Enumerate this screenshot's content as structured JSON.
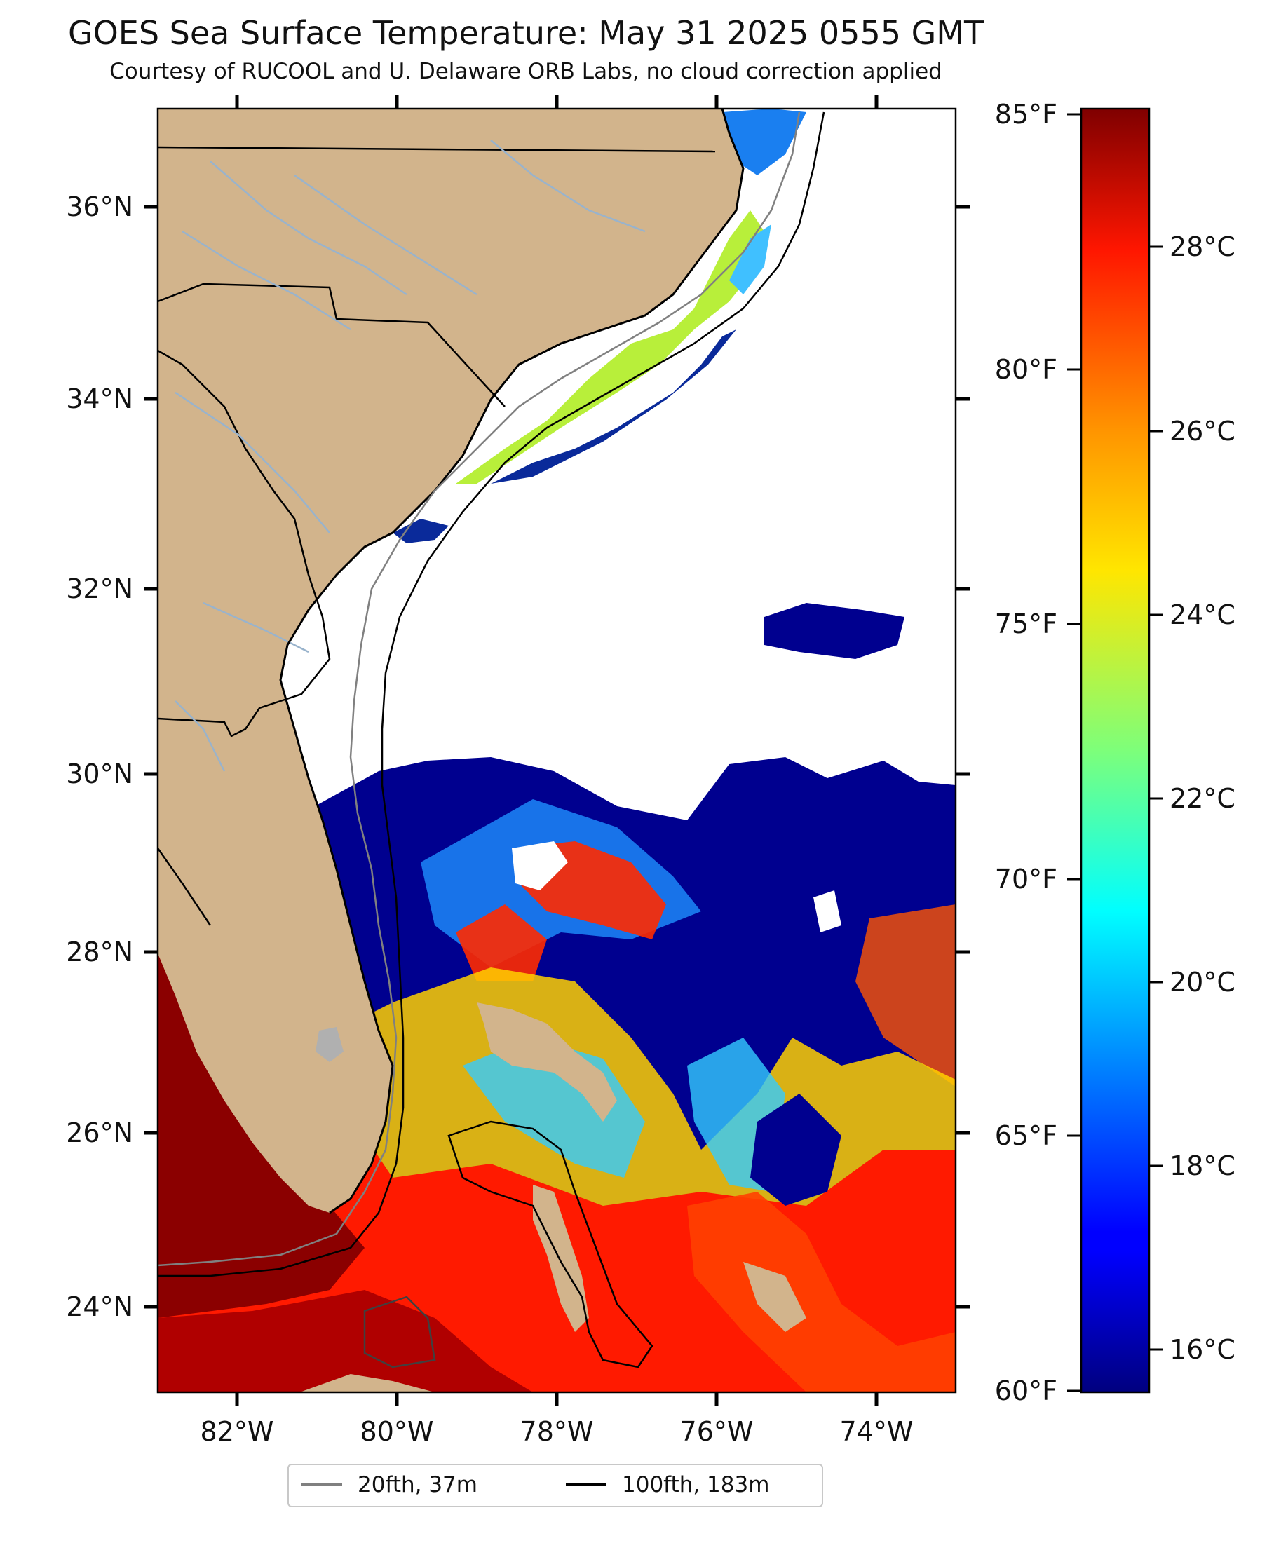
{
  "title": "GOES Sea Surface Temperature: May 31 2025 0555 GMT",
  "subtitle": "Courtesy of RUCOOL and U. Delaware ORB Labs, no cloud correction applied",
  "map": {
    "lon_range": [
      -83,
      -73
    ],
    "lat_range": [
      23.1,
      37.1
    ],
    "lat_ticks": [
      "36°N",
      "34°N",
      "32°N",
      "30°N",
      "28°N",
      "26°N",
      "24°N"
    ],
    "lat_values": [
      36,
      34,
      32,
      30,
      28,
      26,
      24
    ],
    "lon_ticks": [
      "82°W",
      "80°W",
      "78°W",
      "76°W",
      "74°W"
    ],
    "lon_values": [
      -82,
      -80,
      -78,
      -76,
      -74
    ],
    "colors": {
      "land": "#d2b48c",
      "no_data": "#ffffff",
      "coast": "#000000",
      "rivers": "#99b3cc"
    }
  },
  "colorbar": {
    "fahrenheit_ticks": [
      "85°F",
      "80°F",
      "75°F",
      "70°F",
      "65°F",
      "60°F"
    ],
    "fahrenheit_values": [
      85,
      80,
      75,
      70,
      65,
      60
    ],
    "celsius_ticks": [
      "28°C",
      "26°C",
      "24°C",
      "22°C",
      "20°C",
      "18°C",
      "16°C"
    ],
    "celsius_values": [
      28,
      26,
      24,
      22,
      20,
      18,
      16
    ],
    "colormap": "jet"
  },
  "legend": {
    "items": [
      {
        "label": "20fth, 37m",
        "color": "#808080"
      },
      {
        "label": "100fth, 183m",
        "color": "#000000"
      }
    ]
  }
}
